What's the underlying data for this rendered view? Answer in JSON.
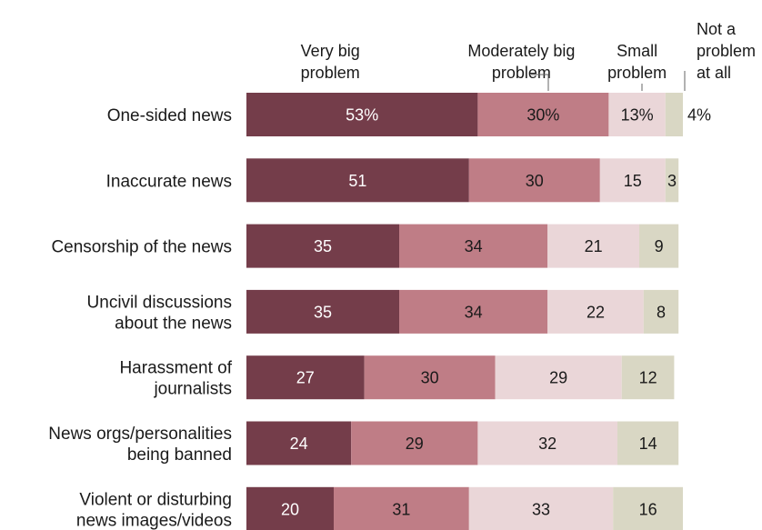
{
  "chart_data": {
    "type": "bar",
    "orientation": "horizontal",
    "stacked": true,
    "categories": [
      "One-sided news",
      "Inaccurate news",
      "Censorship of the news",
      "Uncivil discussions about the news",
      "Harassment of journalists",
      "News orgs/personalities being banned",
      "Violent or disturbing news images/videos"
    ],
    "category_lines": [
      [
        "One-sided news"
      ],
      [
        "Inaccurate news"
      ],
      [
        "Censorship of the news"
      ],
      [
        "Uncivil discussions",
        "about the news"
      ],
      [
        "Harassment of",
        "journalists"
      ],
      [
        "News orgs/personalities",
        "being banned"
      ],
      [
        "Violent or disturbing",
        "news images/videos"
      ]
    ],
    "series": [
      {
        "name": "Very big problem",
        "name_lines": [
          "Very big",
          "problem"
        ],
        "color": "#743d4a",
        "label_color": "#ffffff",
        "values": [
          53,
          51,
          35,
          35,
          27,
          24,
          20
        ]
      },
      {
        "name": "Moderately big problem",
        "name_lines": [
          "Moderately big",
          "problem"
        ],
        "color": "#bf7d86",
        "label_color": "#1a1a1a",
        "values": [
          30,
          30,
          34,
          34,
          30,
          29,
          31
        ]
      },
      {
        "name": "Small problem",
        "name_lines": [
          "Small",
          "problem"
        ],
        "color": "#ead6d8",
        "label_color": "#1a1a1a",
        "values": [
          13,
          15,
          21,
          22,
          29,
          32,
          33
        ]
      },
      {
        "name": "Not a problem at all",
        "name_lines": [
          "Not a",
          "problem",
          "at all"
        ],
        "color": "#d9d7c4",
        "label_color": "#1a1a1a",
        "values": [
          4,
          3,
          9,
          8,
          12,
          14,
          16
        ]
      }
    ],
    "data_labels": [
      [
        "53%",
        "30%",
        "13%",
        "4%"
      ],
      [
        "51",
        "30",
        "15",
        "3"
      ],
      [
        "35",
        "34",
        "21",
        "9"
      ],
      [
        "35",
        "34",
        "22",
        "8"
      ],
      [
        "27",
        "30",
        "29",
        "12"
      ],
      [
        "24",
        "29",
        "32",
        "14"
      ],
      [
        "20",
        "31",
        "33",
        "16"
      ]
    ],
    "xlim": [
      0,
      100
    ],
    "title": "",
    "xlabel": "",
    "ylabel": "",
    "legend_position": "top"
  }
}
